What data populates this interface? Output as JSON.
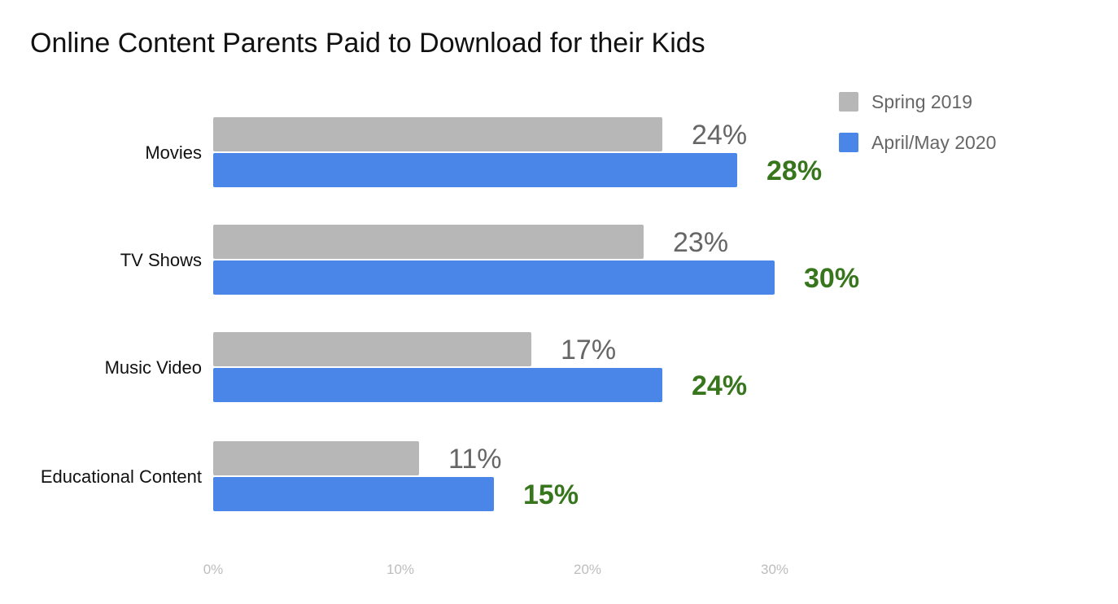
{
  "chart_data": {
    "type": "bar",
    "orientation": "horizontal",
    "title": "Online Content Parents Paid to Download for their Kids",
    "categories": [
      "Movies",
      "TV Shows",
      "Music Video",
      "Educational Content"
    ],
    "series": [
      {
        "name": "Spring 2019",
        "values": [
          24,
          23,
          17,
          11
        ],
        "labels": [
          "24%",
          "23%",
          "17%",
          "11%"
        ],
        "color": "#b7b7b7",
        "label_color": "#666666"
      },
      {
        "name": "April/May 2020",
        "values": [
          28,
          30,
          24,
          15
        ],
        "labels": [
          "28%",
          "30%",
          "24%",
          "15%"
        ],
        "color": "#4a86e8",
        "label_color": "#38761d"
      }
    ],
    "x_ticks": [
      {
        "value": 0,
        "label": "0%"
      },
      {
        "value": 10,
        "label": "10%"
      },
      {
        "value": 20,
        "label": "20%"
      },
      {
        "value": 30,
        "label": "30%"
      }
    ],
    "xlim": [
      0,
      30
    ],
    "xlabel": "",
    "ylabel": "",
    "grid": false,
    "legend_position": "top-right"
  }
}
